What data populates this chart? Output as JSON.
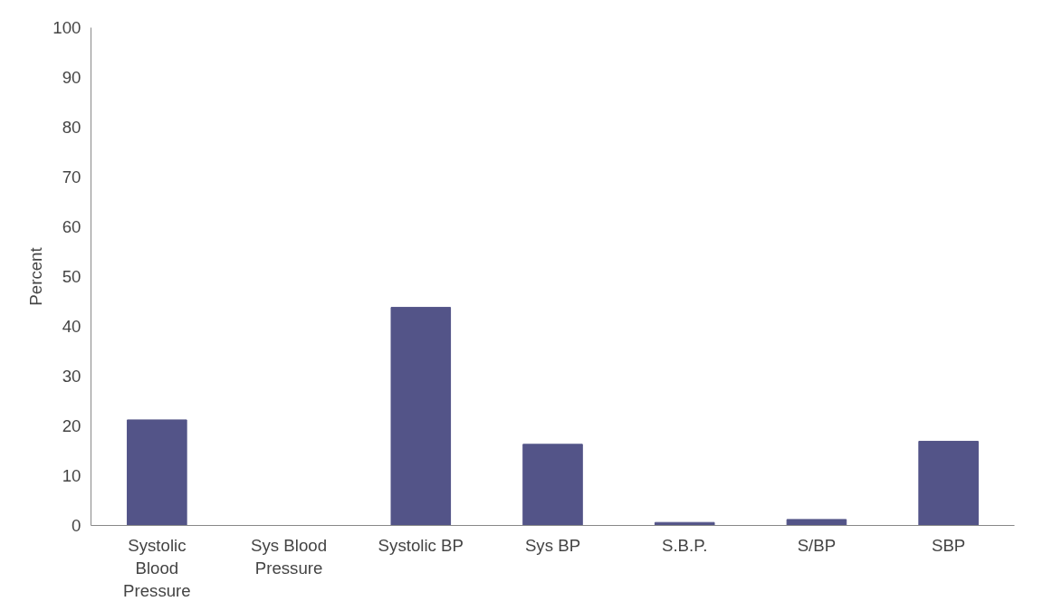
{
  "chart_data": {
    "type": "bar",
    "ylabel": "Percent",
    "categories": [
      "Systolic Blood Pressure",
      "Sys Blood Pressure",
      "Systolic BP",
      "Sys BP",
      "S.B.P.",
      "S/BP",
      "SBP"
    ],
    "values": [
      21.2,
      0,
      43.8,
      16.3,
      0.6,
      1.2,
      16.9
    ],
    "color": "#535488",
    "ylim": [
      0,
      100
    ],
    "yticks": [
      0,
      10,
      20,
      30,
      40,
      50,
      60,
      70,
      80,
      90,
      100
    ],
    "grid": false
  }
}
